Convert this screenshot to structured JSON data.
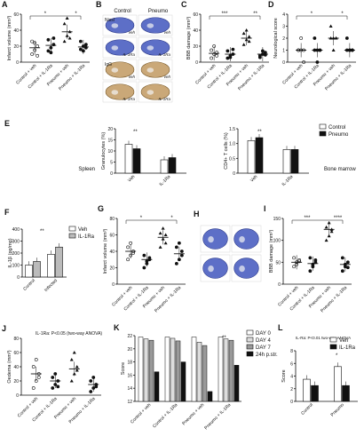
{
  "panels": {
    "A": {
      "label": "A",
      "ylabel": "Infarct volume (mm³)",
      "ylim": [
        0,
        60
      ],
      "ticks": [
        "0",
        "20",
        "40",
        "60"
      ],
      "groups": [
        "Control + veh",
        "Control + IL-1Ra",
        "Pneumo + veh",
        "Pneumo + IL-1Ra"
      ],
      "points": [
        [
          10,
          15,
          20,
          26,
          24,
          8
        ],
        [
          14,
          18,
          22,
          28,
          12,
          30
        ],
        [
          26,
          33,
          38,
          48,
          55,
          30
        ],
        [
          16,
          20,
          22,
          26,
          14,
          18
        ]
      ],
      "means": [
        18,
        21,
        38,
        19
      ],
      "sig": [
        "*",
        "*"
      ]
    },
    "B": {
      "label": "B",
      "col_labels": [
        "Control",
        "Pneumo"
      ],
      "row_labels": [
        "Nissl",
        "IgG"
      ],
      "tags": [
        "veh",
        "veh",
        "IL-1Ra",
        "IL-1Ra",
        "veh",
        "veh",
        "IL-1Ra",
        "IL-1Ra"
      ]
    },
    "C": {
      "label": "C",
      "ylabel": "BBB damage (mm³)",
      "ylim": [
        0,
        60
      ],
      "ticks": [
        "0",
        "20",
        "40",
        "60"
      ],
      "groups": [
        "Control + veh",
        "Control + IL-1Ra",
        "Pneumo + veh",
        "Pneumo + IL-1Ra"
      ],
      "points": [
        [
          5,
          10,
          12,
          15,
          20,
          8
        ],
        [
          5,
          8,
          10,
          14,
          6,
          16
        ],
        [
          22,
          28,
          32,
          36,
          40,
          26
        ],
        [
          6,
          10,
          12,
          8,
          14,
          9
        ]
      ],
      "means": [
        11,
        10,
        30,
        10
      ],
      "sig": [
        "***",
        "**"
      ]
    },
    "D": {
      "label": "D",
      "ylabel": "Neurological score",
      "ylim": [
        0,
        4
      ],
      "ticks": [
        "0",
        "1",
        "2",
        "3",
        "4"
      ],
      "groups": [
        "Control + veh",
        "Control + IL-1Ra",
        "Pneumo + veh",
        "Pneumo + IL-1Ra"
      ],
      "points": [
        [
          1,
          1,
          1,
          1,
          2,
          0
        ],
        [
          1,
          1,
          1,
          2,
          0,
          1
        ],
        [
          2,
          2,
          2,
          3,
          1,
          2
        ],
        [
          1,
          1,
          1,
          2,
          1,
          1
        ]
      ],
      "means": [
        1,
        1,
        2,
        1
      ],
      "sig": [
        "*",
        "*"
      ]
    },
    "E": {
      "label": "E",
      "legend": [
        "Control",
        "Pneumo"
      ],
      "left_side": "Spleen",
      "right_side": "Bone marrow",
      "left": {
        "ylabel": "Granulocytes (%)",
        "ylim": [
          0,
          20
        ],
        "ticks": [
          "0",
          "5",
          "10",
          "15",
          "20"
        ],
        "categories": [
          "Veh",
          "IL-1Ra"
        ],
        "control": [
          13,
          6
        ],
        "pneumo": [
          11,
          7
        ],
        "sig": [
          "**"
        ]
      },
      "right": {
        "ylabel": "CD4+ T cells (%)",
        "ylim": [
          0,
          1.5
        ],
        "ticks": [
          "0",
          "0.5",
          "1.0",
          "1.5"
        ],
        "categories": [
          "Veh",
          "IL-1Ra"
        ],
        "control": [
          1.1,
          0.8
        ],
        "pneumo": [
          1.2,
          0.8
        ],
        "sig": [
          "**"
        ]
      }
    },
    "F": {
      "label": "F",
      "ylabel": "IL-1β (pg/mg)",
      "ylim": [
        0,
        400
      ],
      "ticks": [
        "0",
        "100",
        "200",
        "300",
        "400"
      ],
      "categories": [
        "Control",
        "Infected"
      ],
      "legend": [
        "Veh",
        "IL-1Ra"
      ],
      "veh": [
        100,
        190
      ],
      "ilra": [
        130,
        250
      ],
      "sig": [
        "**"
      ]
    },
    "G": {
      "label": "G",
      "ylabel": "Infarct volume (mm³)",
      "ylim": [
        0,
        80
      ],
      "ticks": [
        "0",
        "20",
        "40",
        "60",
        "80"
      ],
      "groups": [
        "Control + veh",
        "Control + IL-1Ra",
        "Pneumo + veh",
        "Pneumo + IL-1Ra"
      ],
      "points": [
        [
          30,
          35,
          40,
          45,
          50,
          38
        ],
        [
          20,
          25,
          30,
          35,
          28,
          32
        ],
        [
          45,
          55,
          60,
          62,
          68,
          50
        ],
        [
          25,
          30,
          40,
          45,
          50,
          35
        ]
      ],
      "means": [
        40,
        30,
        57,
        37
      ],
      "sig": [
        "*",
        "*"
      ]
    },
    "H": {
      "label": "H"
    },
    "I": {
      "label": "I",
      "ylabel": "BBB damage (mm³)",
      "ylim": [
        0,
        150
      ],
      "ticks": [
        "0",
        "50",
        "100",
        "150"
      ],
      "groups": [
        "Control + veh",
        "Control + IL-1Ra",
        "Pneumo + veh",
        "Pneumo + IL-1Ra"
      ],
      "points": [
        [
          40,
          50,
          55,
          60,
          45,
          52
        ],
        [
          30,
          45,
          50,
          60,
          40,
          55
        ],
        [
          100,
          110,
          120,
          130,
          140,
          125
        ],
        [
          30,
          40,
          50,
          60,
          45,
          38
        ]
      ],
      "means": [
        50,
        47,
        125,
        45
      ],
      "sig": [
        "***",
        "****"
      ]
    },
    "J": {
      "label": "J",
      "note": "IL-1Ra: P<0.05 (two-way ANOVA)",
      "ylabel": "Oedema (mm³)",
      "ylim": [
        0,
        80
      ],
      "ticks": [
        "0",
        "20",
        "40",
        "60",
        "80"
      ],
      "groups": [
        "Control + veh",
        "Control + IL-1Ra",
        "Pneumo + veh",
        "Pneumo + IL-1Ra"
      ],
      "points": [
        [
          10,
          20,
          30,
          40,
          50,
          25
        ],
        [
          10,
          15,
          20,
          25,
          30,
          12
        ],
        [
          20,
          30,
          40,
          50,
          60,
          35
        ],
        [
          5,
          10,
          15,
          20,
          25,
          12
        ]
      ],
      "means": [
        30,
        20,
        37,
        15
      ]
    },
    "K": {
      "label": "K",
      "ylabel": "Score",
      "ylim": [
        12,
        22
      ],
      "ticks": [
        "12",
        "14",
        "16",
        "18",
        "20",
        "22"
      ],
      "groups": [
        "Control + veh",
        "Control + IL-1Ra",
        "Pneumo + veh",
        "Pneumo + IL-1Ra"
      ],
      "legend": [
        "DAY 0",
        "DAY 4",
        "DAY 7",
        "24h p.str."
      ],
      "values": [
        [
          21.8,
          21.5,
          21.3,
          16.5
        ],
        [
          21.8,
          21.6,
          21.2,
          18
        ],
        [
          21.8,
          21,
          20.5,
          13.5
        ],
        [
          21.8,
          21.5,
          21.3,
          17.5
        ]
      ],
      "sig": [
        "**"
      ]
    },
    "L": {
      "label": "L",
      "note": "IL-Ra: P<0.01 two-way ANOVA",
      "ylabel": "Score",
      "ylim": [
        0,
        8
      ],
      "ticks": [
        "0",
        "2",
        "4",
        "6",
        "8"
      ],
      "categories": [
        "Control",
        "Pneumo"
      ],
      "legend": [
        "Veh",
        "IL-1Ra"
      ],
      "veh": [
        3.5,
        5.5
      ],
      "ilra": [
        2.5,
        2.5
      ],
      "sig": [
        "*"
      ]
    }
  }
}
